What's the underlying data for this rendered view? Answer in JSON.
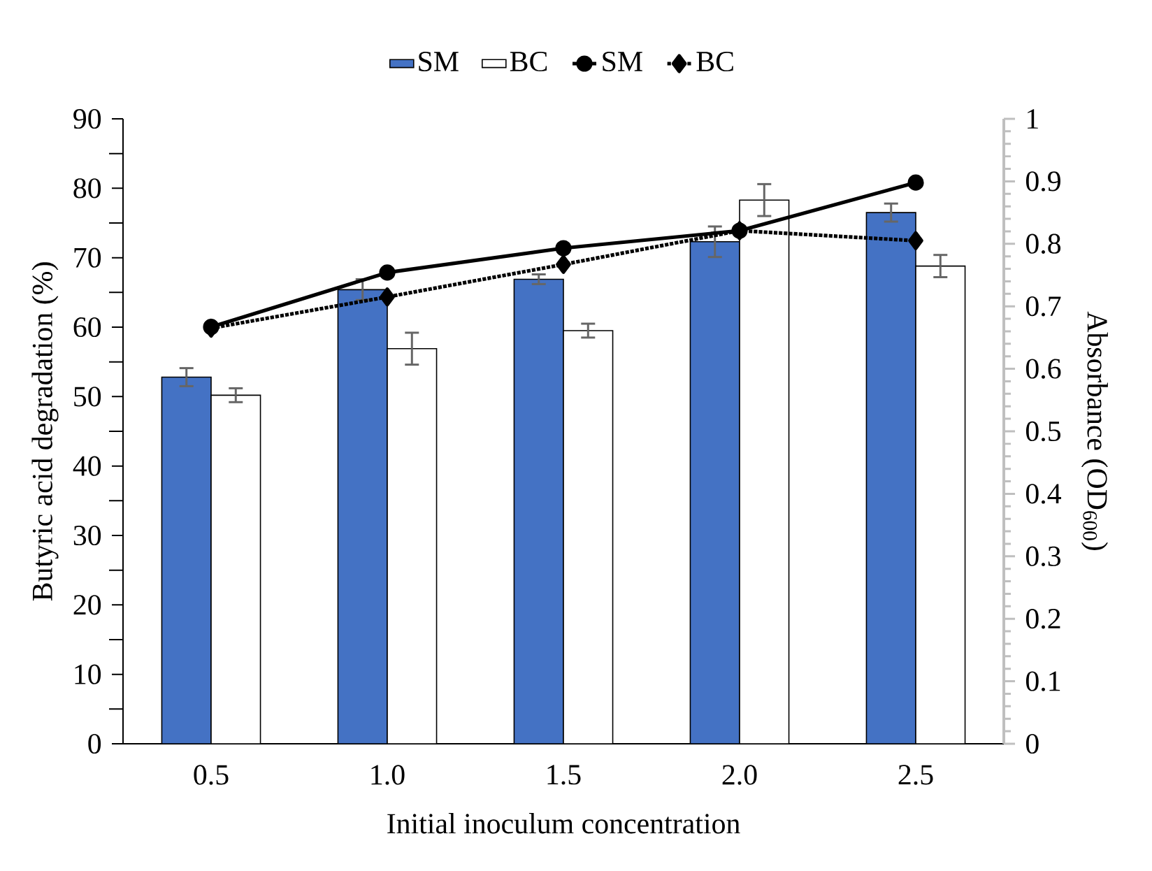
{
  "chart_data": {
    "type": "bar",
    "xlabel": "Initial inoculum concentration",
    "ylabel": "Butyric acid degradation (%)",
    "y2label": "Absorbance (OD$_{600}$)",
    "categories": [
      "0.5",
      "1.0",
      "1.5",
      "2.0",
      "2.5"
    ],
    "series": [
      {
        "name": "SM",
        "color": "#4472c4",
        "values": [
          52.8,
          65.4,
          66.9,
          72.3,
          76.5
        ],
        "errors": [
          1.3,
          1.5,
          0.7,
          2.2,
          1.3
        ]
      },
      {
        "name": "BC",
        "color": "#ffffff",
        "values": [
          50.2,
          56.9,
          59.5,
          78.3,
          68.8
        ],
        "errors": [
          1.0,
          2.3,
          1.0,
          2.3,
          1.6
        ]
      },
      {
        "name": "SM",
        "type": "line",
        "axis": "y2",
        "color": "#000000",
        "marker": "circle",
        "line_style": "solid",
        "values": [
          0.667,
          0.754,
          0.793,
          0.821,
          0.898
        ]
      },
      {
        "name": "BC",
        "type": "line",
        "axis": "y2",
        "color": "#000000",
        "marker": "diamond",
        "line_style": "dotted",
        "values": [
          0.665,
          0.715,
          0.767,
          0.821,
          0.805
        ]
      }
    ],
    "ylim": [
      0,
      90
    ],
    "yticks": [
      0,
      10,
      20,
      30,
      40,
      50,
      60,
      70,
      80,
      90
    ],
    "y2lim": [
      0,
      1
    ],
    "y2ticks": [
      0,
      0.1,
      0.2,
      0.3,
      0.4,
      0.5,
      0.6,
      0.7,
      0.8,
      0.9,
      1
    ],
    "legend": "top"
  }
}
